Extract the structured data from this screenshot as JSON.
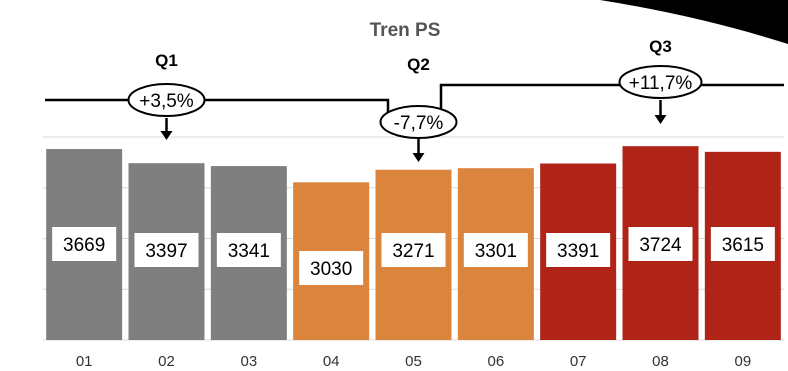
{
  "colors": {
    "gray": "#7f7f7f",
    "orange": "#db843d",
    "red": "#b02418",
    "grid": "#d9d9d9"
  },
  "chart_data": {
    "type": "bar",
    "title": "Tren PS",
    "categories": [
      "01",
      "02",
      "03",
      "04",
      "05",
      "06",
      "07",
      "08",
      "09"
    ],
    "values": [
      3669,
      3397,
      3341,
      3030,
      3271,
      3301,
      3391,
      3724,
      3615
    ],
    "ylim": [
      0,
      3900
    ],
    "grid": true,
    "bar_groups": [
      "Q1",
      "Q1",
      "Q1",
      "Q2",
      "Q2",
      "Q2",
      "Q3",
      "Q3",
      "Q3"
    ],
    "quarters": [
      {
        "label": "Q1",
        "change": "+3,5%"
      },
      {
        "label": "Q2",
        "change": "-7,7%"
      },
      {
        "label": "Q3",
        "change": "+11,7%"
      }
    ]
  }
}
